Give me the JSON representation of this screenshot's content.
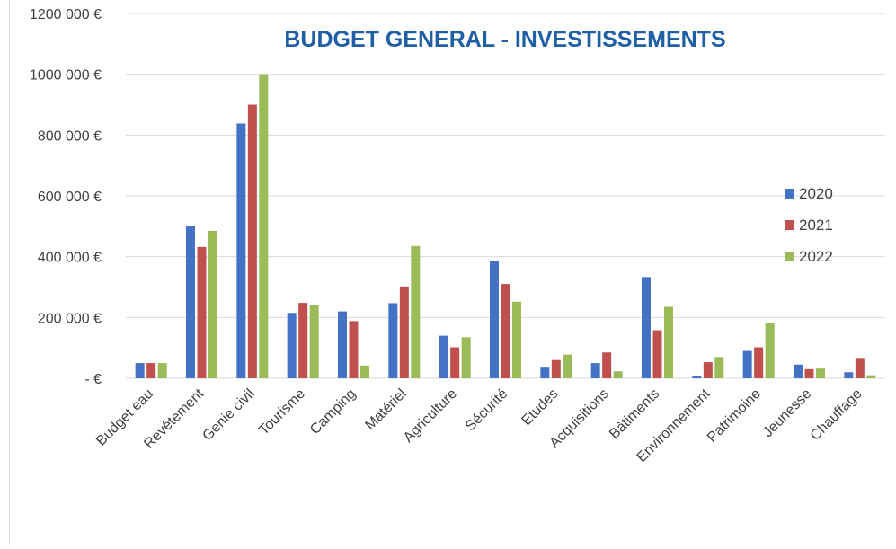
{
  "chart_data": {
    "type": "bar",
    "title": "BUDGET GENERAL - INVESTISSEMENTS",
    "xlabel": "",
    "ylabel": "",
    "categories": [
      "Budget eau",
      "Revêtement",
      "Genie civil",
      "Tourisme",
      "Camping",
      "Matériel",
      "Agriculture",
      "Sécurité",
      "Etudes",
      "Acquisitions",
      "Bâtiments",
      "Environnement",
      "Patrimoine",
      "Jeunesse",
      "Chauffage"
    ],
    "series": [
      {
        "name": "2020",
        "color": "#4472c4",
        "values": [
          50000,
          500000,
          838000,
          215000,
          220000,
          247000,
          140000,
          387000,
          35000,
          50000,
          333000,
          8000,
          90000,
          45000,
          20000
        ]
      },
      {
        "name": "2021",
        "color": "#c0504d",
        "values": [
          50000,
          432000,
          900000,
          248000,
          188000,
          302000,
          102000,
          310000,
          60000,
          85000,
          158000,
          53000,
          102000,
          30000,
          67000
        ]
      },
      {
        "name": "2022",
        "color": "#9bbb59",
        "values": [
          50000,
          485000,
          1000000,
          240000,
          42000,
          435000,
          135000,
          252000,
          78000,
          23000,
          235000,
          70000,
          183000,
          32000,
          10000
        ]
      }
    ],
    "ylim": [
      0,
      1200000
    ],
    "yticks": [
      0,
      200000,
      400000,
      600000,
      800000,
      1000000,
      1200000
    ],
    "ytick_labels": [
      "-  €",
      "200 000 €",
      "400 000 €",
      "600 000 €",
      "800 000 €",
      "1000 000 €",
      "1200 000 €"
    ],
    "grid": true,
    "legend_position": "right",
    "title_color": "#1f5fa6",
    "grid_color": "#d9d9d9",
    "axis_text_color": "#404040"
  }
}
